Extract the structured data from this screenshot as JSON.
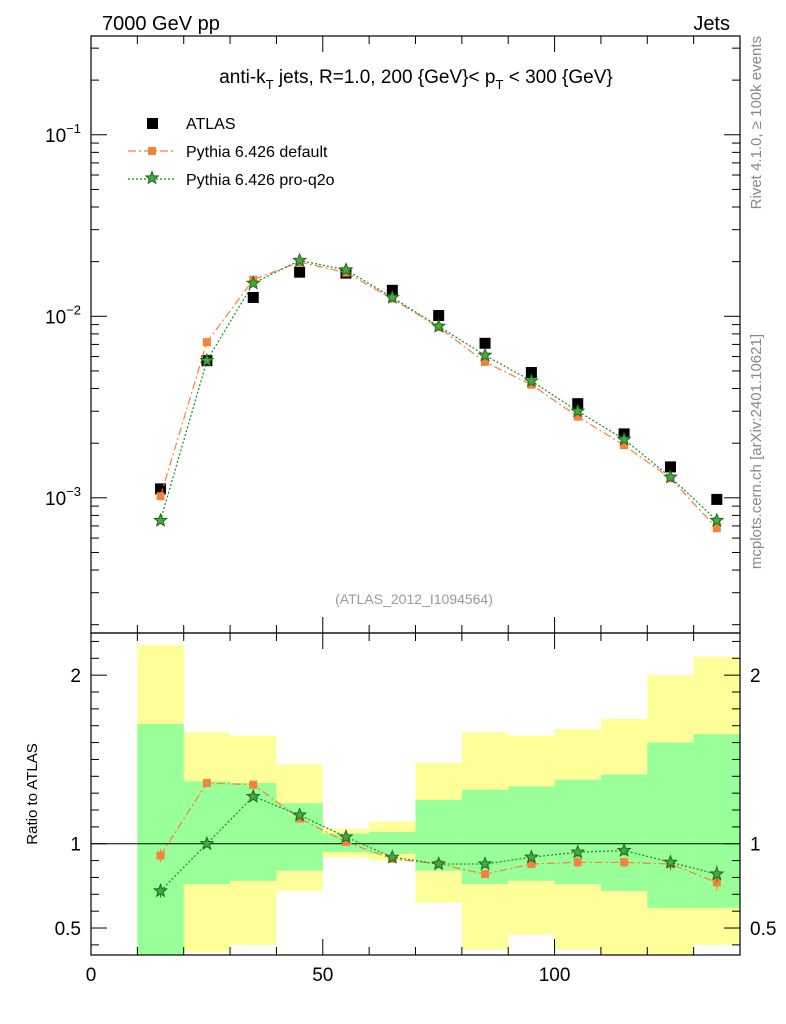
{
  "header": {
    "left": "7000 GeV pp",
    "right": "Jets"
  },
  "side_labels": {
    "rivet": "Rivet 4.1.0, ≥ 100k events",
    "mcplots": "mcplots.cern.ch [arXiv:2401.10621]"
  },
  "chart_data": [
    {
      "type": "scatter",
      "panel": "main",
      "title_parts": {
        "pre": "anti-k",
        "sub1": "T",
        "mid": " jets, R=1.0, 200 {GeV}< p",
        "sub2": "T",
        "post": " < 300 {GeV}"
      },
      "y_scale": "log",
      "ylim": [
        0.00018,
        0.35
      ],
      "xlim": [
        0,
        140
      ],
      "y_ticks": [
        {
          "value": 0.1,
          "base": "10",
          "exp": "−1"
        },
        {
          "value": 0.01,
          "base": "10",
          "exp": "−2"
        },
        {
          "value": 0.001,
          "base": "10",
          "exp": "−3"
        }
      ],
      "watermark": "(ATLAS_2012_I1094564)",
      "x": [
        15,
        25,
        35,
        45,
        55,
        65,
        75,
        85,
        95,
        105,
        115,
        125,
        135
      ],
      "series": [
        {
          "name": "ATLAS",
          "color": "#000000",
          "marker": "square",
          "values": [
            0.00112,
            0.0057,
            0.0127,
            0.0175,
            0.0173,
            0.0139,
            0.0101,
            0.0071,
            0.0049,
            0.0033,
            0.00225,
            0.00148,
            0.00098
          ]
        },
        {
          "name": "Pythia 6.426 default",
          "color": "#f5813a",
          "marker": "square-small",
          "dash": "8,3,2,3",
          "values": [
            0.00102,
            0.0072,
            0.0159,
            0.0199,
            0.0174,
            0.0125,
            0.0087,
            0.0056,
            0.0042,
            0.0028,
            0.00195,
            0.00128,
            0.00068
          ]
        },
        {
          "name": "Pythia 6.426 pro-q2o",
          "color": "#1b8a1b",
          "marker": "star",
          "dash": "2,2",
          "values": [
            0.00075,
            0.0057,
            0.0152,
            0.0203,
            0.018,
            0.0127,
            0.0088,
            0.0061,
            0.0044,
            0.003,
            0.0021,
            0.0013,
            0.00075
          ]
        }
      ]
    },
    {
      "type": "scatter",
      "panel": "ratio",
      "ylabel": "Ratio to ATLAS",
      "ylim": [
        0.34,
        2.25
      ],
      "xlim": [
        0,
        140
      ],
      "y_ticks": [
        {
          "value": 0.5,
          "label": "0.5"
        },
        {
          "value": 1,
          "label": "1"
        },
        {
          "value": 2,
          "label": "2"
        }
      ],
      "x_ticks": [
        {
          "value": 0,
          "label": "0"
        },
        {
          "value": 50,
          "label": "50"
        },
        {
          "value": 100,
          "label": "100"
        }
      ],
      "bin_edges": [
        10,
        20,
        30,
        40,
        50,
        60,
        70,
        80,
        90,
        100,
        110,
        120,
        130,
        140
      ],
      "band_yellow": {
        "color": "#ffff99",
        "low": [
          0.34,
          0.36,
          0.4,
          0.72,
          0.92,
          0.9,
          0.65,
          0.37,
          0.46,
          0.37,
          0.34,
          0.34,
          0.4
        ],
        "high": [
          2.18,
          1.66,
          1.64,
          1.47,
          1.09,
          1.13,
          1.48,
          1.66,
          1.64,
          1.68,
          1.74,
          2.0,
          2.11
        ]
      },
      "band_green": {
        "color": "#99ff99",
        "low": [
          0.34,
          0.76,
          0.78,
          0.84,
          0.95,
          0.94,
          0.84,
          0.76,
          0.78,
          0.76,
          0.72,
          0.62,
          0.62
        ],
        "high": [
          1.71,
          1.37,
          1.36,
          1.24,
          1.06,
          1.07,
          1.26,
          1.32,
          1.34,
          1.38,
          1.41,
          1.6,
          1.65
        ]
      },
      "x": [
        15,
        25,
        35,
        45,
        55,
        65,
        75,
        85,
        95,
        105,
        115,
        125,
        135
      ],
      "series": [
        {
          "name": "Pythia 6.426 default",
          "color": "#f5813a",
          "marker": "square-small",
          "dash": "8,3,2,3",
          "values": [
            0.93,
            1.36,
            1.35,
            1.15,
            1.01,
            0.91,
            0.88,
            0.82,
            0.88,
            0.89,
            0.89,
            0.88,
            0.77
          ],
          "errors": [
            0.04,
            0.02,
            0.02,
            0.02,
            0.02,
            0.02,
            0.02,
            0.02,
            0.02,
            0.03,
            0.03,
            0.04,
            0.05
          ]
        },
        {
          "name": "Pythia 6.426 pro-q2o",
          "color": "#1b8a1b",
          "marker": "star",
          "dash": "2,2",
          "values": [
            0.72,
            1.0,
            1.28,
            1.17,
            1.04,
            0.92,
            0.88,
            0.88,
            0.92,
            0.95,
            0.96,
            0.89,
            0.82
          ],
          "errors": [
            0.04,
            0.02,
            0.02,
            0.02,
            0.02,
            0.02,
            0.02,
            0.02,
            0.02,
            0.03,
            0.03,
            0.04,
            0.05
          ]
        }
      ]
    }
  ]
}
